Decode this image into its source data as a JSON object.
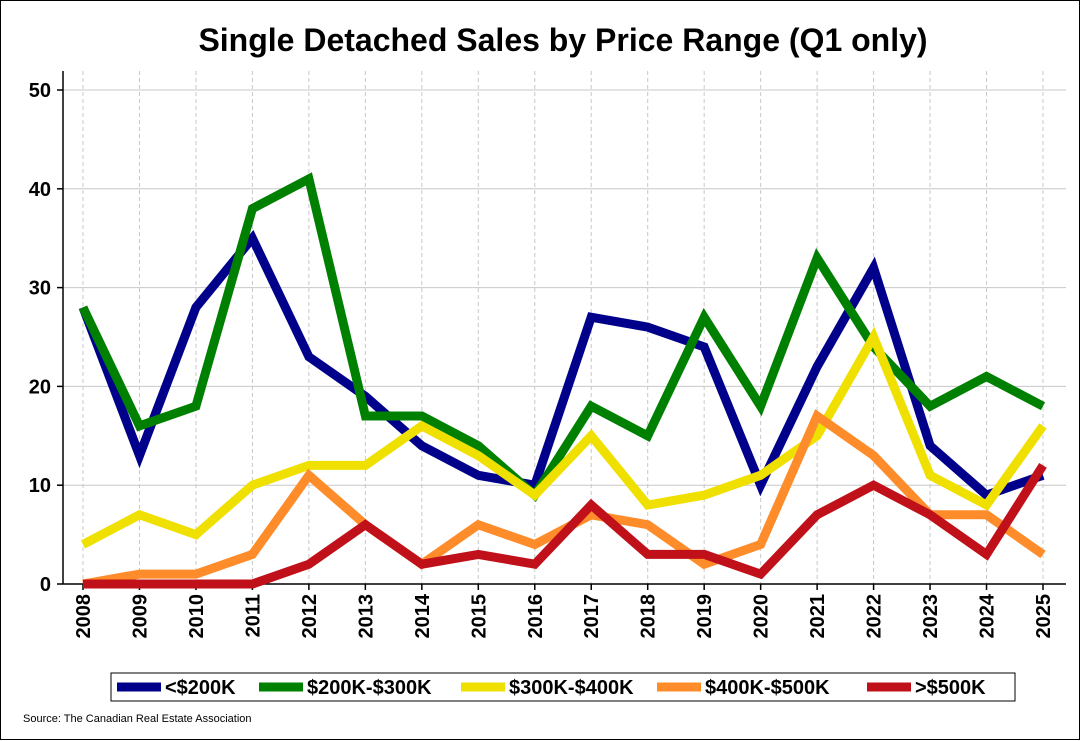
{
  "chart_data": {
    "type": "line",
    "title": "Single Detached Sales by Price Range (Q1 only)",
    "xlabel": "",
    "ylabel": "",
    "ylim": [
      0,
      50
    ],
    "yticks": [
      0,
      10,
      20,
      30,
      40,
      50
    ],
    "grid": true,
    "legend_position": "bottom",
    "categories": [
      "2008",
      "2009",
      "2010",
      "2011",
      "2012",
      "2013",
      "2014",
      "2015",
      "2016",
      "2017",
      "2018",
      "2019",
      "2020",
      "2021",
      "2022",
      "2023",
      "2024",
      "2025"
    ],
    "series": [
      {
        "name": "<$200K",
        "color": "#00008B",
        "values": [
          28,
          13,
          28,
          35,
          23,
          19,
          14,
          11,
          10,
          27,
          26,
          24,
          10,
          22,
          32,
          14,
          9,
          11
        ]
      },
      {
        "name": "$200K-$300K",
        "color": "#008000",
        "values": [
          28,
          16,
          18,
          38,
          41,
          17,
          17,
          14,
          9,
          18,
          15,
          27,
          18,
          33,
          24,
          18,
          21,
          18
        ]
      },
      {
        "name": "$300K-$400K",
        "color": "#F0E000",
        "values": [
          4,
          7,
          5,
          10,
          12,
          12,
          16,
          13,
          9,
          15,
          8,
          9,
          11,
          15,
          25,
          11,
          8,
          16
        ]
      },
      {
        "name": "$400K-$500K",
        "color": "#FF8C2A",
        "values": [
          0,
          1,
          1,
          3,
          11,
          6,
          2,
          6,
          4,
          7,
          6,
          2,
          4,
          17,
          13,
          7,
          7,
          3
        ]
      },
      {
        "name": ">$500K",
        "color": "#C0101A",
        "values": [
          0,
          0,
          0,
          0,
          2,
          6,
          2,
          3,
          2,
          8,
          3,
          3,
          1,
          7,
          10,
          7,
          3,
          12
        ]
      }
    ],
    "source": "Source: The Canadian Real Estate Association"
  }
}
